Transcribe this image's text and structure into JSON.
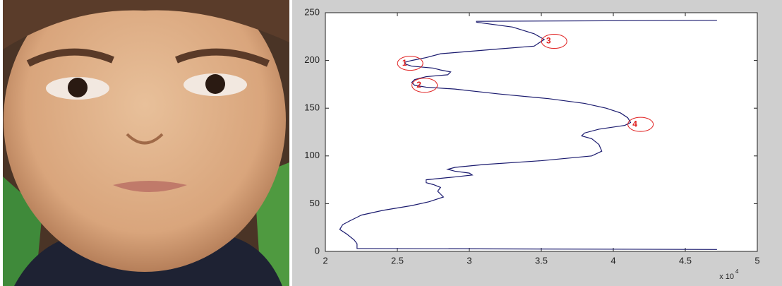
{
  "chart_data": {
    "type": "line",
    "series": [
      {
        "color": "#1a1a6e",
        "x": [
          4.72,
          3.05,
          3.05,
          3.3,
          3.45,
          3.52,
          3.45,
          3.2,
          2.8,
          2.7,
          2.6,
          2.55,
          2.56,
          2.6,
          2.75,
          2.8,
          2.87,
          2.85,
          2.7,
          2.62,
          2.6,
          2.62,
          2.7,
          2.9,
          3.2,
          3.55,
          3.8,
          3.95,
          4.05,
          4.1,
          4.12,
          4.08,
          3.9,
          3.8,
          3.78,
          3.85,
          3.9,
          3.92,
          3.85,
          3.5,
          3.1,
          2.9,
          2.85,
          2.9,
          3.0,
          3.02,
          2.9,
          2.7,
          2.7,
          2.75,
          2.8,
          2.78,
          2.8,
          2.82,
          2.72,
          2.6,
          2.4,
          2.25,
          2.17,
          2.12,
          2.1,
          2.15,
          2.2,
          2.22,
          2.22,
          2.22,
          4.72
        ],
        "values": [
          242,
          241,
          240,
          235,
          228,
          222,
          215,
          212,
          207,
          203,
          200,
          198,
          196,
          194,
          192,
          190,
          188,
          185,
          183,
          180,
          177,
          174,
          172,
          170,
          165,
          160,
          155,
          150,
          145,
          140,
          135,
          132,
          128,
          124,
          121,
          118,
          112,
          105,
          100,
          95,
          91,
          88,
          86,
          84,
          82,
          80,
          78,
          75,
          72,
          70,
          67,
          63,
          60,
          57,
          52,
          48,
          43,
          38,
          32,
          28,
          23,
          18,
          12,
          8,
          4,
          3,
          2
        ]
      }
    ],
    "annotations": [
      {
        "label": "1",
        "x": 2.55,
        "y": 197
      },
      {
        "label": "2",
        "x": 2.65,
        "y": 174
      },
      {
        "label": "3",
        "x": 3.55,
        "y": 220
      },
      {
        "label": "4",
        "x": 4.15,
        "y": 133
      }
    ],
    "annotation_color": "#e02020",
    "xlim": [
      2,
      5
    ],
    "xticks": [
      2,
      2.5,
      3,
      3.5,
      4,
      4.5,
      5
    ],
    "ylim": [
      0,
      250
    ],
    "yticks": [
      0,
      50,
      100,
      150,
      200,
      250
    ],
    "x_scale_label": "x 10",
    "x_scale_exponent": "4"
  }
}
